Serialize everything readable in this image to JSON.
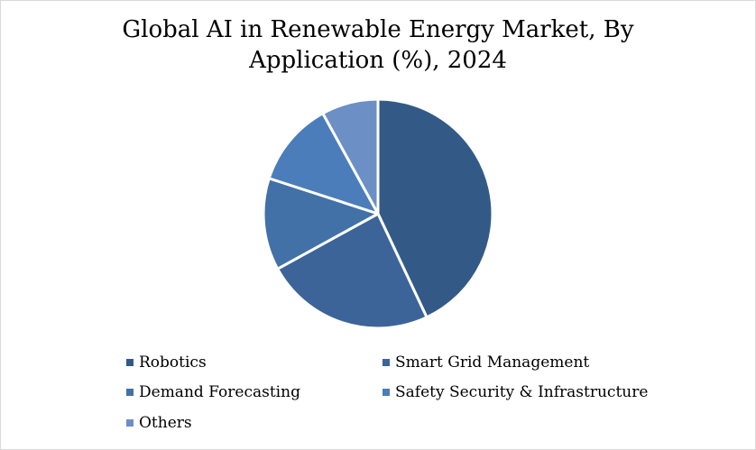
{
  "chart_data": {
    "type": "pie",
    "title_lines": [
      "Global AI in Renewable Energy Market, By",
      "Application (%), 2024"
    ],
    "categories": [
      "Robotics",
      "Smart Grid Management",
      "Demand Forecasting",
      "Safety Security & Infrastructure",
      "Others"
    ],
    "values": [
      43,
      24,
      13,
      12,
      8
    ],
    "colors": [
      "#335a87",
      "#3c6499",
      "#4271a8",
      "#4b7dbb",
      "#6c8fc5"
    ],
    "legend_position": "bottom",
    "start_angle_deg": 0,
    "direction": "clockwise"
  }
}
